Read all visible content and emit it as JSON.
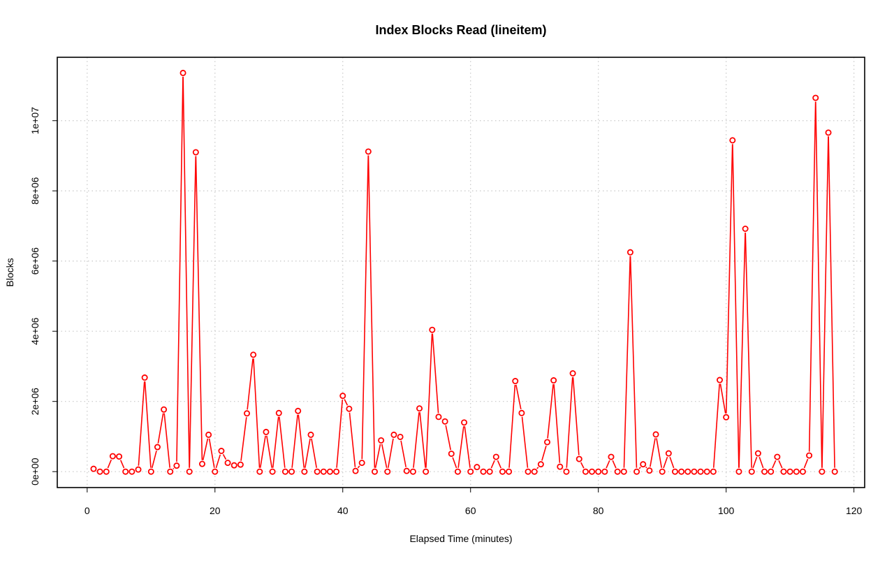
{
  "chart_data": {
    "type": "line",
    "title": "Index Blocks Read (lineitem)",
    "xlabel": "Elapsed Time (minutes)",
    "ylabel": "Blocks",
    "xlim": [
      -4.68,
      121.68
    ],
    "ylim": [
      -454000,
      11806000
    ],
    "xticks": [
      0,
      20,
      40,
      60,
      80,
      100,
      120
    ],
    "xtick_labels": [
      "0",
      "20",
      "40",
      "60",
      "80",
      "100",
      "120"
    ],
    "yticks": [
      0,
      2000000,
      4000000,
      6000000,
      8000000,
      10000000
    ],
    "ytick_labels": [
      "0e+00",
      "2e+06",
      "4e+06",
      "6e+06",
      "8e+06",
      "1e+07"
    ],
    "grid": true,
    "line_color": "#ff0000",
    "marker": "open-circle",
    "series": [
      {
        "x": [
          1,
          2,
          3,
          4,
          5,
          6,
          7,
          8,
          9,
          10,
          11,
          12,
          13,
          14,
          15,
          16,
          17,
          18,
          19,
          20,
          21,
          22,
          23,
          24,
          25,
          26,
          27,
          28,
          29,
          30,
          31,
          32,
          33,
          34,
          35,
          36,
          37,
          38,
          39,
          40,
          41,
          42,
          43,
          44,
          45,
          46,
          47,
          48,
          49,
          50,
          51,
          52,
          53,
          54,
          55,
          56,
          57,
          58,
          59,
          60,
          61,
          62,
          63,
          64,
          65,
          66,
          67,
          68,
          69,
          70,
          71,
          72,
          73,
          74,
          75,
          76,
          77,
          78,
          79,
          80,
          81,
          82,
          83,
          84,
          85,
          86,
          87,
          88,
          89,
          90,
          91,
          92,
          93,
          94,
          95,
          96,
          97,
          98,
          99,
          100,
          101,
          102,
          103,
          104,
          105,
          106,
          107,
          108,
          109,
          110,
          111,
          112,
          113,
          114,
          115,
          116,
          117
        ],
        "values": [
          80000,
          0,
          0,
          440000,
          430000,
          0,
          0,
          60000,
          2680000,
          0,
          700000,
          1770000,
          0,
          170000,
          11360000,
          0,
          9100000,
          220000,
          1050000,
          0,
          590000,
          250000,
          180000,
          200000,
          1660000,
          3330000,
          0,
          1130000,
          0,
          1670000,
          0,
          0,
          1730000,
          0,
          1050000,
          0,
          0,
          0,
          0,
          2160000,
          1790000,
          20000,
          250000,
          9120000,
          0,
          890000,
          0,
          1050000,
          990000,
          20000,
          0,
          1800000,
          0,
          4040000,
          1560000,
          1430000,
          510000,
          0,
          1400000,
          0,
          130000,
          0,
          0,
          420000,
          0,
          0,
          2580000,
          1670000,
          0,
          0,
          210000,
          840000,
          2600000,
          140000,
          0,
          2800000,
          360000,
          0,
          0,
          0,
          0,
          420000,
          0,
          0,
          6250000,
          0,
          210000,
          30000,
          1060000,
          0,
          520000,
          0,
          0,
          0,
          0,
          0,
          0,
          0,
          2610000,
          1550000,
          9440000,
          0,
          6920000,
          0,
          520000,
          0,
          0,
          420000,
          0,
          0,
          0,
          0,
          460000,
          10650000,
          0,
          9660000,
          0
        ]
      }
    ]
  }
}
